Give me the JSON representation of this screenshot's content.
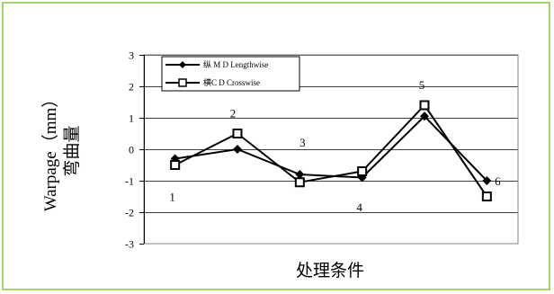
{
  "chart_data": {
    "type": "line",
    "x": [
      1,
      2,
      3,
      4,
      5,
      6
    ],
    "xlabel": "处理条件",
    "ylabel_line1": "Warpage（mm）",
    "ylabel_line2": "弯曲量",
    "ylim": [
      -3,
      3
    ],
    "yticks": [
      3,
      2,
      1,
      0,
      -1,
      -2,
      -3
    ],
    "grid": true,
    "legend_position": "top-left",
    "series": [
      {
        "name": "纵 M D Lengthwise",
        "marker": "filled-diamond",
        "values": [
          -0.3,
          0.0,
          -0.8,
          -0.9,
          1.05,
          -1.0
        ]
      },
      {
        "name": "横C D Crosswise",
        "marker": "open-square",
        "values": [
          -0.5,
          0.5,
          -1.05,
          -0.7,
          1.4,
          -1.5
        ]
      }
    ],
    "point_labels": [
      "1",
      "2",
      "3",
      "4",
      "5",
      "6"
    ]
  }
}
